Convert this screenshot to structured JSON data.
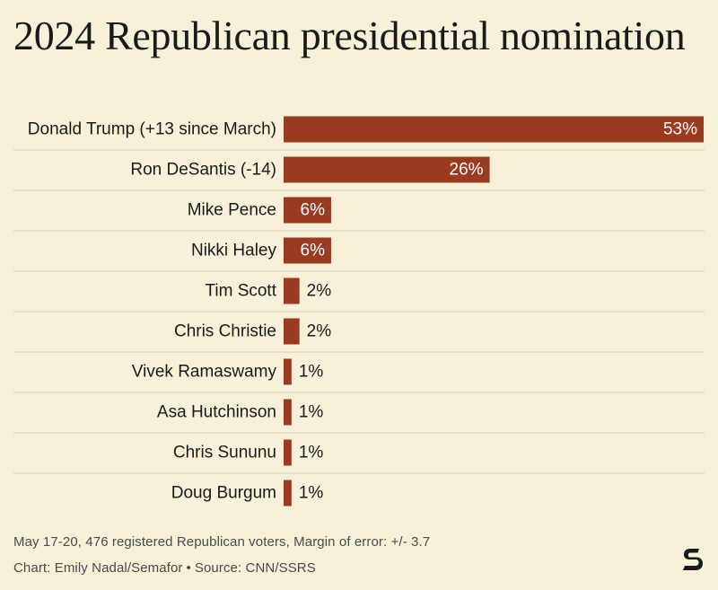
{
  "title": "2024 Republican presidential nomination",
  "footer": {
    "note": "May 17-20, 476 registered Republican voters, Margin of error: +/- 3.7",
    "credit_author": "Chart: Emily Nadal/Semafor",
    "credit_sep": "•",
    "credit_source": "Source: CNN/SSRS"
  },
  "colors": {
    "bar": "#9a3b21",
    "background": "#f6f1d8",
    "divider": "#d6d0b8"
  },
  "logo_icon": "semafor-s-logo-icon",
  "chart_data": {
    "type": "bar",
    "orientation": "horizontal",
    "title": "2024 Republican presidential nomination",
    "xlabel": "",
    "ylabel": "",
    "xlim": [
      0,
      53
    ],
    "grid": false,
    "value_suffix": "%",
    "categories": [
      "Donald Trump (+13 since March)",
      "Ron DeSantis (-14)",
      "Mike Pence",
      "Nikki Haley",
      "Tim Scott",
      "Chris Christie",
      "Vivek Ramaswamy",
      "Asa Hutchinson",
      "Chris Sununu",
      "Doug Burgum"
    ],
    "values": [
      53,
      26,
      6,
      6,
      2,
      2,
      1,
      1,
      1,
      1
    ]
  }
}
